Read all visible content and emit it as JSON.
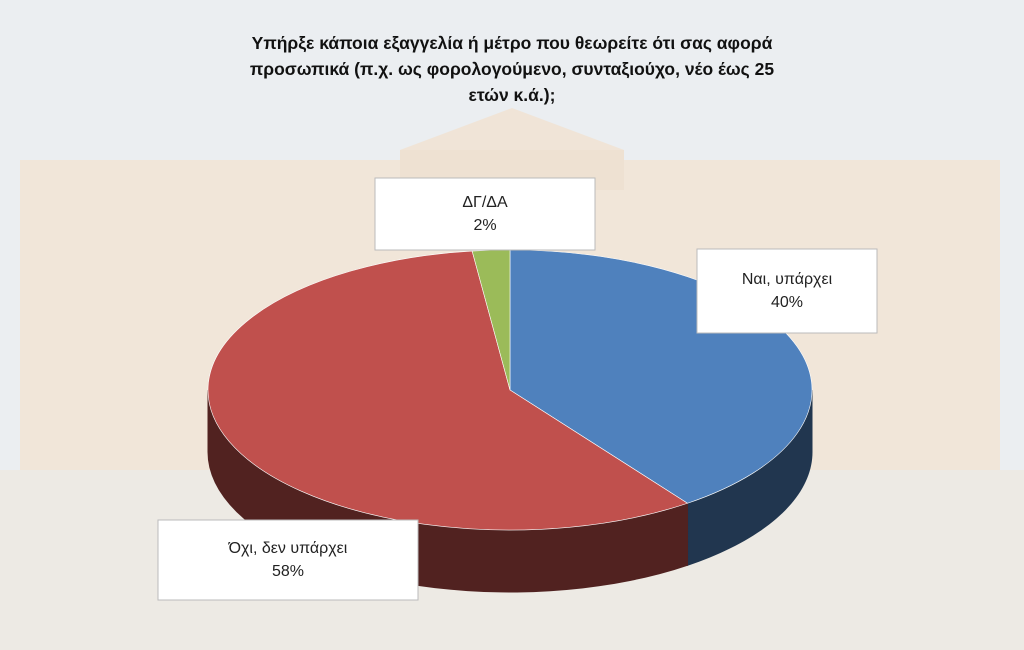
{
  "chart_data": {
    "type": "pie",
    "title": "Υπήρξε κάποια εξαγγελία ή μέτρο που θεωρείτε ότι σας αφορά προσωπικά (π.χ. ως φορολογούμενο, συνταξιούχο, νέο έως 25 ετών κ.ά.);",
    "categories": [
      "Ναι, υπάρχει",
      "Όχι, δεν υπάρχει",
      "ΔΓ/ΔΑ"
    ],
    "values": [
      40,
      58,
      2
    ],
    "value_labels": [
      "40%",
      "58%",
      "2%"
    ],
    "colors": [
      "#4f81bd",
      "#c0504d",
      "#9bbb59"
    ]
  }
}
